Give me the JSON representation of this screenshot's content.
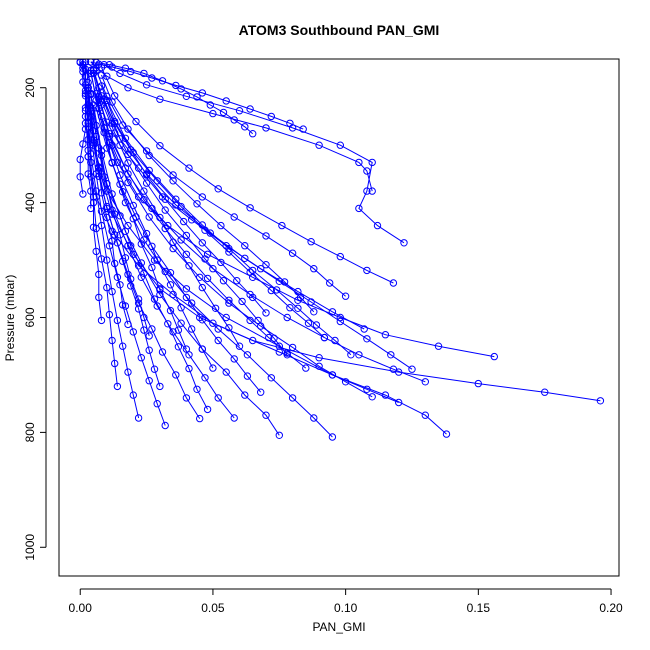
{
  "chart_data": {
    "type": "line",
    "title": "ATOM3 Southbound PAN_GMI",
    "xlabel": "PAN_GMI",
    "ylabel": "Pressure (mbar)",
    "xlim": [
      -0.008,
      0.203
    ],
    "ylim": [
      1050,
      150
    ],
    "y_reversed": true,
    "x_ticks": [
      0.0,
      0.05,
      0.1,
      0.15,
      0.2
    ],
    "x_tick_labels": [
      "0.00",
      "0.05",
      "0.10",
      "0.15",
      "0.20"
    ],
    "y_ticks": [
      200,
      400,
      600,
      800,
      1000
    ],
    "y_tick_labels": [
      "200",
      "400",
      "600",
      "800",
      "1000"
    ],
    "grid": false,
    "legend": "none",
    "markers": "open-circle",
    "color": "#0000ff",
    "series": [
      {
        "x": [
          0.12,
          0.108,
          0.095,
          0.075,
          0.05,
          0.035,
          0.022,
          0.012,
          0.006,
          0.003,
          0.002,
          0.002
        ],
        "y": [
          748,
          725,
          700,
          660,
          610,
          560,
          510,
          450,
          390,
          320,
          240,
          155
        ]
      },
      {
        "x": [
          0.138,
          0.13,
          0.115,
          0.095,
          0.075,
          0.055,
          0.04,
          0.028,
          0.018,
          0.01,
          0.005,
          0.003
        ],
        "y": [
          803,
          770,
          735,
          700,
          650,
          600,
          550,
          500,
          440,
          380,
          300,
          200
        ]
      },
      {
        "x": [
          0.196,
          0.175,
          0.15,
          0.12,
          0.09,
          0.065,
          0.045,
          0.03,
          0.02,
          0.012,
          0.007,
          0.004
        ],
        "y": [
          745,
          730,
          715,
          695,
          670,
          640,
          600,
          550,
          490,
          420,
          340,
          250
        ]
      },
      {
        "x": [
          0.156,
          0.135,
          0.115,
          0.098,
          0.082,
          0.065,
          0.048,
          0.033,
          0.022,
          0.014,
          0.009,
          0.006
        ],
        "y": [
          668,
          650,
          630,
          600,
          570,
          530,
          490,
          440,
          390,
          330,
          270,
          210
        ]
      },
      {
        "x": [
          0.122,
          0.112,
          0.105,
          0.108,
          0.11,
          0.098,
          0.08,
          0.06,
          0.04,
          0.025,
          0.015,
          0.009
        ],
        "y": [
          470,
          440,
          410,
          380,
          330,
          300,
          270,
          240,
          215,
          195,
          175,
          160
        ]
      },
      {
        "x": [
          0.107,
          0.095,
          0.082,
          0.068,
          0.055,
          0.042,
          0.031,
          0.022,
          0.015,
          0.01,
          0.007,
          0.005
        ],
        "y": [
          620,
          590,
          555,
          515,
          475,
          430,
          390,
          340,
          300,
          260,
          220,
          175
        ]
      },
      {
        "x": [
          0.095,
          0.088,
          0.08,
          0.072,
          0.063,
          0.052,
          0.042,
          0.032,
          0.024,
          0.017,
          0.012,
          0.008
        ],
        "y": [
          808,
          775,
          740,
          705,
          665,
          620,
          575,
          520,
          465,
          400,
          330,
          250
        ]
      },
      {
        "x": [
          0.075,
          0.07,
          0.062,
          0.055,
          0.046,
          0.038,
          0.03,
          0.023,
          0.017,
          0.012,
          0.008,
          0.005
        ],
        "y": [
          805,
          770,
          735,
          695,
          655,
          610,
          560,
          505,
          450,
          385,
          310,
          230
        ]
      },
      {
        "x": [
          0.058,
          0.052,
          0.047,
          0.041,
          0.035,
          0.029,
          0.023,
          0.018,
          0.013,
          0.009,
          0.006,
          0.004
        ],
        "y": [
          775,
          740,
          705,
          665,
          625,
          580,
          530,
          475,
          420,
          355,
          285,
          210
        ]
      },
      {
        "x": [
          0.045,
          0.04,
          0.036,
          0.031,
          0.027,
          0.022,
          0.018,
          0.014,
          0.01,
          0.007,
          0.005,
          0.003
        ],
        "y": [
          776,
          740,
          700,
          660,
          620,
          575,
          525,
          470,
          410,
          345,
          275,
          200
        ]
      },
      {
        "x": [
          0.022,
          0.02,
          0.018,
          0.016,
          0.014,
          0.012,
          0.01,
          0.008,
          0.006,
          0.004,
          0.003,
          0.002
        ],
        "y": [
          775,
          735,
          695,
          650,
          605,
          555,
          500,
          440,
          380,
          315,
          250,
          180
        ]
      },
      {
        "x": [
          0.032,
          0.029,
          0.026,
          0.023,
          0.02,
          0.017,
          0.014,
          0.011,
          0.008,
          0.006,
          0.004,
          0.003
        ],
        "y": [
          788,
          750,
          710,
          670,
          625,
          580,
          530,
          475,
          415,
          350,
          280,
          205
        ]
      },
      {
        "x": [
          0.13,
          0.118,
          0.105,
          0.092,
          0.078,
          0.064,
          0.05,
          0.038,
          0.027,
          0.018,
          0.011,
          0.007
        ],
        "y": [
          712,
          690,
          665,
          635,
          600,
          560,
          515,
          465,
          410,
          350,
          285,
          215
        ]
      },
      {
        "x": [
          0.11,
          0.1,
          0.09,
          0.08,
          0.068,
          0.056,
          0.045,
          0.035,
          0.026,
          0.018,
          0.012,
          0.008
        ],
        "y": [
          738,
          712,
          685,
          652,
          615,
          575,
          530,
          480,
          425,
          365,
          300,
          230
        ]
      },
      {
        "x": [
          0.085,
          0.078,
          0.071,
          0.064,
          0.056,
          0.048,
          0.04,
          0.032,
          0.024,
          0.017,
          0.011,
          0.007
        ],
        "y": [
          688,
          662,
          635,
          605,
          570,
          532,
          490,
          445,
          395,
          340,
          280,
          215
        ]
      },
      {
        "x": [
          0.068,
          0.063,
          0.058,
          0.052,
          0.046,
          0.04,
          0.034,
          0.027,
          0.021,
          0.015,
          0.01,
          0.006
        ],
        "y": [
          730,
          702,
          672,
          640,
          604,
          565,
          522,
          476,
          425,
          368,
          305,
          235
        ]
      },
      {
        "x": [
          0.11,
          0.108,
          0.105,
          0.09,
          0.07,
          0.05,
          0.03,
          0.018,
          0.01,
          0.006,
          0.004
        ],
        "y": [
          380,
          345,
          330,
          300,
          270,
          245,
          220,
          200,
          180,
          165,
          155
        ]
      },
      {
        "x": [
          0.1,
          0.094,
          0.088,
          0.08,
          0.07,
          0.058,
          0.046,
          0.035,
          0.025,
          0.016,
          0.01,
          0.006
        ],
        "y": [
          563,
          540,
          515,
          488,
          458,
          425,
          390,
          352,
          310,
          265,
          215,
          170
        ]
      },
      {
        "x": [
          0.088,
          0.083,
          0.077,
          0.07,
          0.062,
          0.053,
          0.044,
          0.035,
          0.026,
          0.018,
          0.012,
          0.008
        ],
        "y": [
          590,
          565,
          538,
          508,
          475,
          440,
          402,
          362,
          318,
          272,
          225,
          178
        ]
      },
      {
        "x": [
          0.07,
          0.065,
          0.059,
          0.053,
          0.046,
          0.039,
          0.032,
          0.025,
          0.019,
          0.013,
          0.008,
          0.005
        ],
        "y": [
          592,
          565,
          536,
          504,
          470,
          433,
          394,
          352,
          308,
          262,
          214,
          168
        ]
      },
      {
        "x": [
          0.014,
          0.013,
          0.012,
          0.011,
          0.01,
          0.008,
          0.006,
          0.005,
          0.004,
          0.003,
          0.002,
          0.001
        ],
        "y": [
          720,
          680,
          640,
          595,
          548,
          498,
          445,
          390,
          330,
          268,
          205,
          160
        ]
      },
      {
        "x": [
          0.026,
          0.024,
          0.022,
          0.019,
          0.017,
          0.015,
          0.012,
          0.01,
          0.008,
          0.006,
          0.004,
          0.003
        ],
        "y": [
          632,
          600,
          568,
          533,
          496,
          456,
          413,
          367,
          318,
          266,
          212,
          165
        ]
      },
      {
        "x": [
          0.04,
          0.037,
          0.034,
          0.03,
          0.027,
          0.023,
          0.02,
          0.016,
          0.012,
          0.009,
          0.006,
          0.004
        ],
        "y": [
          655,
          622,
          588,
          552,
          513,
          472,
          428,
          381,
          331,
          278,
          222,
          170
        ]
      },
      {
        "x": [
          0.05,
          0.046,
          0.042,
          0.038,
          0.034,
          0.029,
          0.025,
          0.02,
          0.015,
          0.011,
          0.007,
          0.004
        ],
        "y": [
          688,
          655,
          620,
          583,
          543,
          500,
          454,
          405,
          352,
          296,
          236,
          175
        ]
      },
      {
        "x": [
          0.06,
          0.056,
          0.051,
          0.046,
          0.041,
          0.035,
          0.03,
          0.024,
          0.018,
          0.013,
          0.008,
          0.005
        ],
        "y": [
          650,
          618,
          584,
          548,
          510,
          469,
          426,
          380,
          331,
          279,
          223,
          170
        ]
      },
      {
        "x": [
          0.078,
          0.073,
          0.067,
          0.061,
          0.054,
          0.047,
          0.04,
          0.032,
          0.025,
          0.018,
          0.012,
          0.007
        ],
        "y": [
          665,
          636,
          605,
          572,
          536,
          498,
          457,
          413,
          366,
          316,
          262,
          200
        ]
      },
      {
        "x": [
          0.118,
          0.108,
          0.098,
          0.087,
          0.076,
          0.064,
          0.052,
          0.041,
          0.03,
          0.021,
          0.013,
          0.008
        ],
        "y": [
          540,
          518,
          494,
          468,
          440,
          409,
          376,
          340,
          301,
          259,
          214,
          165
        ]
      },
      {
        "x": [
          0.018,
          0.016,
          0.015,
          0.013,
          0.012,
          0.01,
          0.008,
          0.007,
          0.005,
          0.004,
          0.003,
          0.002
        ],
        "y": [
          612,
          578,
          543,
          506,
          467,
          426,
          383,
          338,
          291,
          242,
          191,
          155
        ]
      },
      {
        "x": [
          0.008,
          0.007,
          0.007,
          0.006,
          0.005,
          0.005,
          0.004,
          0.003,
          0.003,
          0.002,
          0.002,
          0.001
        ],
        "y": [
          605,
          565,
          525,
          485,
          443,
          400,
          355,
          309,
          262,
          214,
          168,
          155
        ]
      },
      {
        "x": [
          0.048,
          0.044,
          0.041,
          0.037,
          0.033,
          0.028,
          0.024,
          0.019,
          0.015,
          0.01,
          0.007,
          0.004
        ],
        "y": [
          760,
          725,
          689,
          651,
          611,
          568,
          523,
          475,
          423,
          367,
          305,
          235
        ]
      },
      {
        "x": [
          0.092,
          0.086,
          0.079,
          0.072,
          0.064,
          0.056,
          0.047,
          0.038,
          0.029,
          0.02,
          0.013,
          0.008
        ],
        "y": [
          635,
          610,
          583,
          553,
          521,
          486,
          448,
          407,
          362,
          313,
          259,
          197
        ]
      },
      {
        "x": [
          0.102,
          0.096,
          0.089,
          0.082,
          0.074,
          0.065,
          0.056,
          0.046,
          0.036,
          0.026,
          0.017,
          0.01
        ],
        "y": [
          665,
          640,
          613,
          584,
          552,
          518,
          480,
          439,
          394,
          344,
          288,
          222
        ]
      },
      {
        "x": [
          0.065,
          0.062,
          0.058,
          0.054,
          0.049,
          0.044,
          0.038,
          0.031,
          0.024,
          0.017,
          0.011,
          0.006
        ],
        "y": [
          280,
          268,
          256,
          243,
          230,
          216,
          202,
          188,
          175,
          166,
          160,
          156
        ]
      },
      {
        "x": [
          0.084,
          0.079,
          0.072,
          0.064,
          0.055,
          0.046,
          0.036,
          0.027,
          0.019,
          0.012,
          0.007,
          0.004
        ],
        "y": [
          272,
          262,
          250,
          237,
          223,
          209,
          196,
          183,
          172,
          164,
          159,
          155
        ]
      },
      {
        "x": [
          0.004,
          0.004,
          0.003,
          0.003,
          0.003,
          0.002,
          0.002,
          0.002,
          0.001,
          0.001,
          0.001,
          0.0
        ],
        "y": [
          410,
          380,
          350,
          320,
          290,
          262,
          235,
          210,
          190,
          172,
          160,
          155
        ]
      },
      {
        "x": [
          0.001,
          0.0,
          0.0,
          0.001,
          0.002,
          0.002,
          0.003,
          0.003,
          0.002,
          0.002,
          0.001,
          0.0
        ],
        "y": [
          385,
          355,
          325,
          298,
          272,
          250,
          230,
          212,
          195,
          180,
          166,
          156
        ]
      },
      {
        "x": [
          0.03,
          0.028,
          0.026,
          0.024,
          0.022,
          0.019,
          0.016,
          0.013,
          0.01,
          0.007,
          0.005,
          0.003
        ],
        "y": [
          720,
          690,
          657,
          622,
          585,
          545,
          502,
          456,
          407,
          354,
          296,
          230
        ]
      },
      {
        "x": [
          0.125,
          0.117,
          0.108,
          0.098,
          0.087,
          0.075,
          0.062,
          0.049,
          0.036,
          0.025,
          0.015,
          0.009
        ],
        "y": [
          690,
          665,
          637,
          607,
          573,
          537,
          497,
          453,
          404,
          350,
          289,
          220
        ]
      }
    ]
  }
}
